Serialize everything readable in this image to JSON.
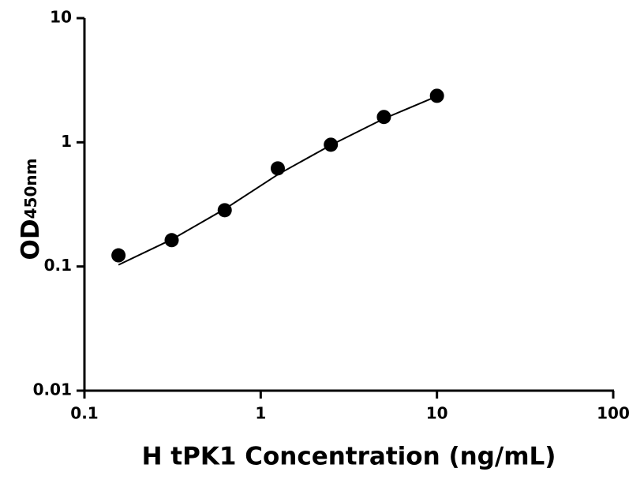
{
  "chart_data": {
    "type": "scatter",
    "xlabel": "H tPK1 Concentration (ng/mL)",
    "ylabel": "OD",
    "ylabel_sub": "450nm",
    "xlog": true,
    "ylog": true,
    "xlim": [
      0.1,
      100
    ],
    "ylim": [
      0.01,
      10
    ],
    "xticks": [
      0.1,
      1,
      10,
      100
    ],
    "yticks": [
      0.01,
      0.1,
      1,
      10
    ],
    "grid": false,
    "series": [
      {
        "style": "markers",
        "color": "#000000",
        "x": [
          0.156,
          0.3125,
          0.625,
          1.25,
          2.5,
          5,
          10
        ],
        "values": [
          0.123,
          0.163,
          0.284,
          0.617,
          0.957,
          1.6,
          2.37
        ]
      },
      {
        "style": "line",
        "color": "#000000",
        "x": [
          0.156,
          0.3125,
          0.625,
          1.25,
          2.5,
          5,
          10
        ],
        "values": [
          0.103,
          0.165,
          0.29,
          0.55,
          0.95,
          1.55,
          2.35
        ]
      }
    ]
  }
}
